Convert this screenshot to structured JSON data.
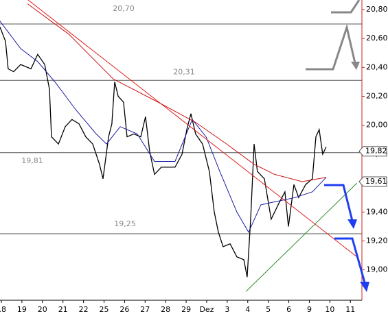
{
  "chart_data": {
    "type": "line",
    "categories": [
      "18",
      "19",
      "20",
      "21",
      "22",
      "25",
      "26",
      "27",
      "28",
      "29",
      "Dez",
      "3",
      "4",
      "5",
      "6",
      "9",
      "10",
      "11"
    ],
    "xlim": [
      -0.067,
      17.56
    ],
    "ylim": [
      18.79,
      20.866
    ],
    "yticks": [
      {
        "value": 19.0,
        "label": "19,000"
      },
      {
        "value": 19.2,
        "label": "19,200"
      },
      {
        "value": 19.4,
        "label": "19,400"
      },
      {
        "value": 19.6,
        "label": "19,600"
      },
      {
        "value": 19.8,
        "label": "19,800"
      },
      {
        "value": 20.0,
        "label": "20,000"
      },
      {
        "value": 20.2,
        "label": "20,200"
      },
      {
        "value": 20.4,
        "label": "20,400"
      },
      {
        "value": 20.6,
        "label": "20,600"
      },
      {
        "value": 20.8,
        "label": "20,800"
      }
    ],
    "series": [
      {
        "color": "#000000",
        "x": [
          -0.07,
          0.2,
          0.33,
          0.6,
          0.94,
          1.44,
          1.77,
          2.11,
          2.34,
          2.44,
          2.78,
          3.11,
          3.44,
          3.78,
          4.11,
          4.45,
          4.78,
          4.95,
          5.22,
          5.38,
          5.52,
          5.69,
          5.95,
          6.12,
          6.45,
          6.79,
          7.02,
          7.22,
          7.46,
          7.79,
          8.13,
          8.46,
          8.8,
          9.03,
          9.23,
          9.46,
          9.8,
          10.13,
          10.37,
          10.57,
          10.8,
          11.14,
          11.47,
          11.81,
          11.97,
          12.14,
          12.31,
          12.47,
          12.81,
          13.14,
          13.48,
          13.81,
          13.98,
          14.25,
          14.48,
          14.82,
          15.15,
          15.32,
          15.48,
          15.65,
          15.82
        ],
        "values": [
          20.68,
          20.58,
          20.39,
          20.37,
          20.42,
          20.39,
          20.49,
          20.42,
          20.25,
          19.92,
          19.87,
          19.99,
          20.04,
          20.01,
          19.92,
          19.87,
          19.73,
          19.63,
          19.92,
          20.01,
          20.3,
          20.2,
          20.16,
          19.92,
          19.94,
          19.92,
          20.06,
          19.82,
          19.66,
          19.71,
          19.71,
          19.71,
          19.8,
          19.97,
          20.08,
          19.94,
          19.87,
          19.68,
          19.4,
          19.26,
          19.16,
          19.18,
          19.09,
          19.07,
          18.95,
          19.35,
          19.87,
          19.68,
          19.63,
          19.35,
          19.45,
          19.54,
          19.3,
          19.59,
          19.5,
          19.59,
          19.63,
          19.92,
          19.97,
          19.8,
          19.85
        ]
      },
      {
        "color": "#1a1aa0",
        "x": [
          -0.07,
          0.94,
          1.77,
          2.61,
          3.61,
          4.62,
          5.12,
          5.79,
          6.62,
          7.46,
          8.46,
          9.3,
          9.97,
          10.64,
          11.47,
          12.04,
          12.64,
          13.31,
          14.31,
          15.15,
          15.82
        ],
        "values": [
          20.72,
          20.53,
          20.44,
          20.3,
          20.11,
          19.94,
          19.87,
          19.99,
          19.94,
          19.75,
          19.75,
          20.04,
          19.92,
          19.68,
          19.4,
          19.26,
          19.45,
          19.47,
          19.5,
          19.54,
          19.64
        ]
      },
      {
        "color": "#cc1111",
        "x": [
          1.27,
          3.28,
          5.45,
          7.63,
          9.46,
          10.97,
          12.31,
          13.31,
          14.65,
          15.82
        ],
        "values": [
          20.84,
          20.63,
          20.32,
          20.16,
          20.02,
          19.87,
          19.73,
          19.66,
          19.61,
          19.64
        ]
      },
      {
        "color": "#e02020",
        "x": [
          1.27,
          17.32
        ],
        "values": [
          20.87,
          19.09
        ]
      },
      {
        "color": "#2a8a2a",
        "x": [
          11.91,
          17.32
        ],
        "values": [
          18.85,
          19.6
        ]
      }
    ],
    "levels": {
      "values": [
        20.7,
        20.31,
        19.81,
        19.25
      ],
      "value_labels": [
        "20,70",
        "20,31",
        "19,81",
        "19,25"
      ]
    },
    "price_tags": {
      "values": [
        19.82,
        19.61
      ],
      "value_labels": [
        "19,82",
        "19,61"
      ]
    }
  }
}
